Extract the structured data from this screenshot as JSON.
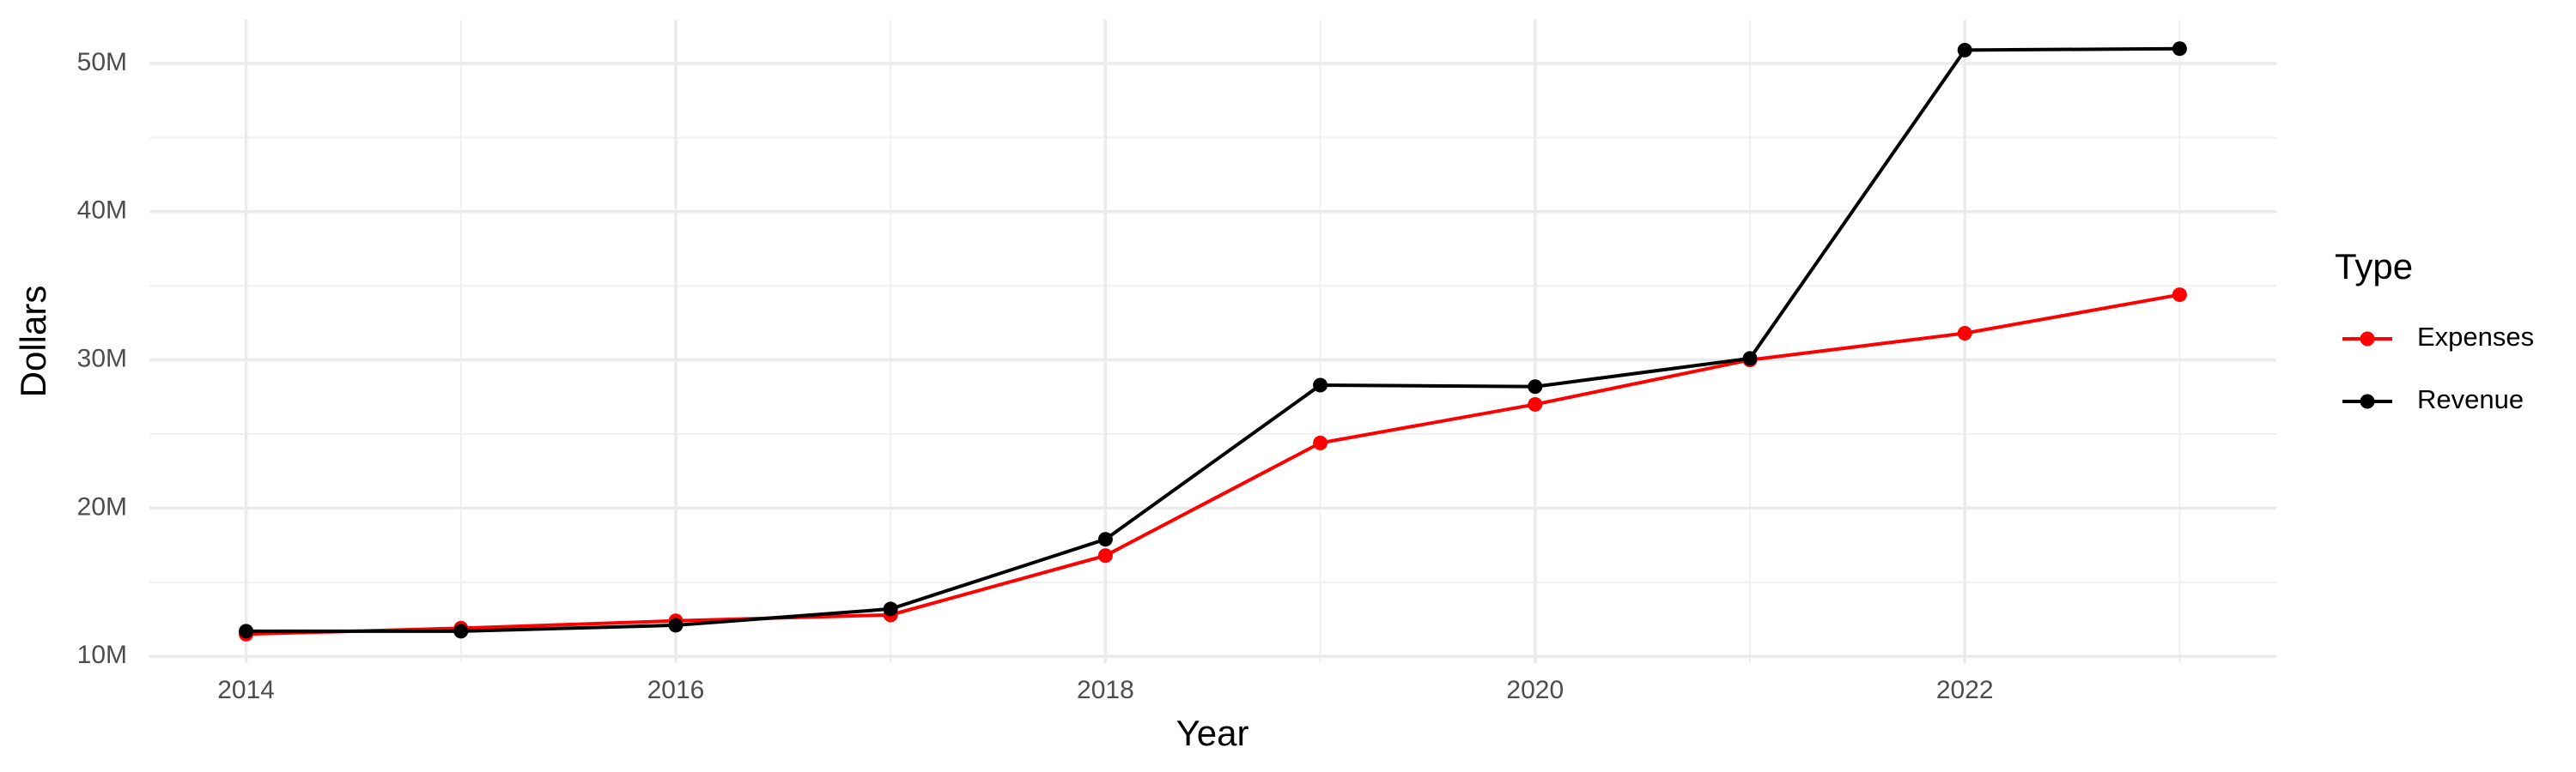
{
  "chart_data": {
    "type": "line",
    "x_label": "Year",
    "y_label": "Dollars",
    "legend_title": "Type",
    "legend_position": "right",
    "grid": true,
    "x": [
      2014,
      2015,
      2016,
      2017,
      2018,
      2019,
      2020,
      2021,
      2022,
      2023
    ],
    "series": [
      {
        "name": "Expenses",
        "color": "#ff0000",
        "values": [
          11500000,
          11900000,
          12400000,
          12800000,
          16800000,
          24400000,
          27000000,
          30000000,
          31800000,
          34400000
        ]
      },
      {
        "name": "Revenue",
        "color": "#000000",
        "values": [
          11700000,
          11700000,
          12100000,
          13200000,
          17900000,
          28300000,
          28200000,
          30100000,
          50900000,
          51000000
        ]
      }
    ],
    "xlim": [
      2013.55,
      2023.45
    ],
    "ylim": [
      9550000,
      52950000
    ],
    "xticks": [
      2014,
      2016,
      2018,
      2020,
      2022
    ],
    "yticks": [
      {
        "value": 10000000,
        "label": "10M"
      },
      {
        "value": 20000000,
        "label": "20M"
      },
      {
        "value": 30000000,
        "label": "30M"
      },
      {
        "value": 40000000,
        "label": "40M"
      },
      {
        "value": 50000000,
        "label": "50M"
      }
    ],
    "x_minor_grid": [
      2015,
      2017,
      2019,
      2021,
      2023
    ],
    "y_minor_grid": [
      15000000,
      25000000,
      35000000,
      45000000
    ]
  }
}
